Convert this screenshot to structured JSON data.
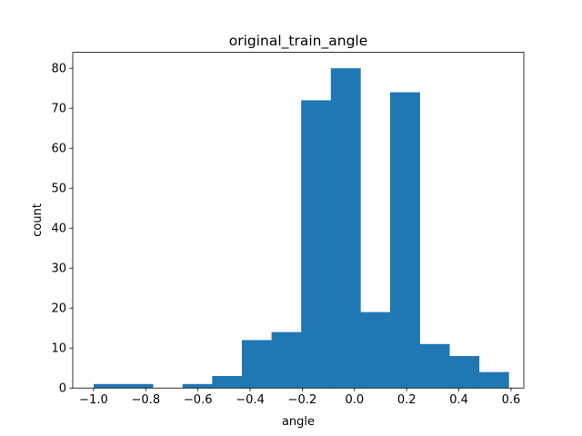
{
  "chart_data": {
    "type": "bar",
    "title": "original_train_angle",
    "xlabel": "angle",
    "ylabel": "count",
    "xlim": [
      -1.08,
      0.649
    ],
    "ylim": [
      0,
      84
    ],
    "xticks": [
      -1.0,
      -0.8,
      -0.6,
      -0.4,
      -0.2,
      0.0,
      0.2,
      0.4,
      0.6
    ],
    "xtick_labels": [
      "−1.0",
      "−0.8",
      "−0.6",
      "−0.4",
      "−0.2",
      "0.0",
      "0.2",
      "0.4",
      "0.6"
    ],
    "yticks": [
      0,
      10,
      20,
      30,
      40,
      50,
      60,
      70,
      80
    ],
    "ytick_labels": [
      "0",
      "10",
      "20",
      "30",
      "40",
      "50",
      "60",
      "70",
      "80"
    ],
    "bin_edges": [
      -1.0,
      -0.8863,
      -0.7727,
      -0.659,
      -0.5454,
      -0.4317,
      -0.318,
      -0.2044,
      -0.0907,
      0.0229,
      0.1366,
      0.2502,
      0.3639,
      0.4776,
      0.5912
    ],
    "values": [
      1,
      1,
      0,
      1,
      3,
      12,
      14,
      72,
      80,
      19,
      74,
      11,
      8,
      4
    ],
    "bar_color": "#1f77b4",
    "grid": false
  }
}
